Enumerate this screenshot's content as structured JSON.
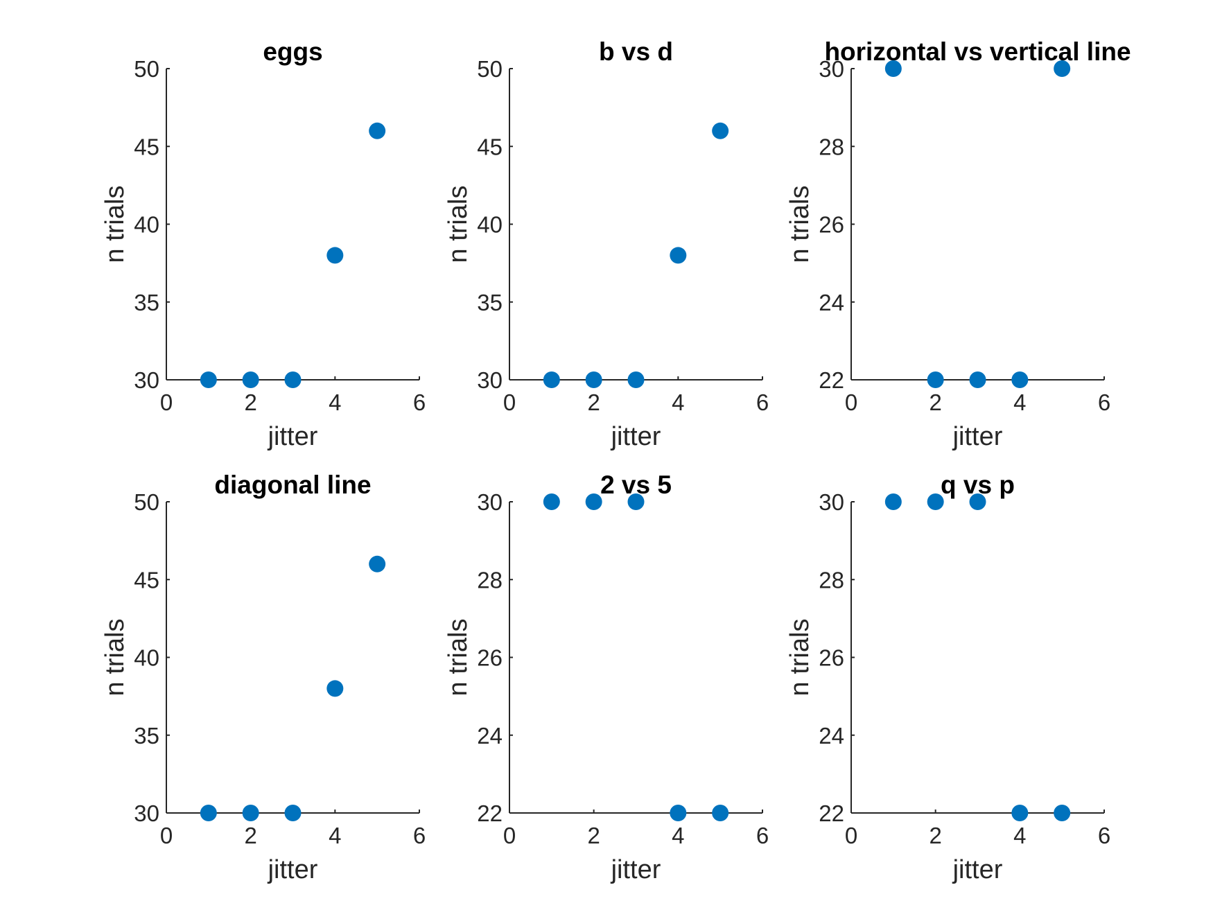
{
  "figure": {
    "marker_color": "#0072BD",
    "axis_color": "#262626"
  },
  "chart_data": [
    {
      "type": "scatter",
      "title": "eggs",
      "xlabel": "jitter",
      "ylabel": "n trials",
      "xlim": [
        0,
        6
      ],
      "ylim": [
        30,
        50
      ],
      "xticks": [
        "0",
        "2",
        "4",
        "6"
      ],
      "yticks": [
        "30",
        "35",
        "40",
        "45",
        "50"
      ],
      "x": [
        1,
        2,
        3,
        4,
        5
      ],
      "y": [
        30,
        30,
        30,
        38,
        46
      ],
      "grid": false
    },
    {
      "type": "scatter",
      "title": "b vs d",
      "xlabel": "jitter",
      "ylabel": "n trials",
      "xlim": [
        0,
        6
      ],
      "ylim": [
        30,
        50
      ],
      "xticks": [
        "0",
        "2",
        "4",
        "6"
      ],
      "yticks": [
        "30",
        "35",
        "40",
        "45",
        "50"
      ],
      "x": [
        1,
        2,
        3,
        4,
        5
      ],
      "y": [
        30,
        30,
        30,
        38,
        46
      ],
      "grid": false
    },
    {
      "type": "scatter",
      "title": "horizontal vs vertical line",
      "xlabel": "jitter",
      "ylabel": "n trials",
      "xlim": [
        0,
        6
      ],
      "ylim": [
        22,
        30
      ],
      "xticks": [
        "0",
        "2",
        "4",
        "6"
      ],
      "yticks": [
        "22",
        "24",
        "26",
        "28",
        "30"
      ],
      "x": [
        1,
        2,
        3,
        4,
        5
      ],
      "y": [
        30,
        22,
        22,
        22,
        30
      ],
      "grid": false
    },
    {
      "type": "scatter",
      "title": "diagonal line",
      "xlabel": "jitter",
      "ylabel": "n trials",
      "xlim": [
        0,
        6
      ],
      "ylim": [
        30,
        50
      ],
      "xticks": [
        "0",
        "2",
        "4",
        "6"
      ],
      "yticks": [
        "30",
        "35",
        "40",
        "45",
        "50"
      ],
      "x": [
        1,
        2,
        3,
        4,
        5
      ],
      "y": [
        30,
        30,
        30,
        38,
        46
      ],
      "grid": false
    },
    {
      "type": "scatter",
      "title": "2 vs 5",
      "xlabel": "jitter",
      "ylabel": "n trials",
      "xlim": [
        0,
        6
      ],
      "ylim": [
        22,
        30
      ],
      "xticks": [
        "0",
        "2",
        "4",
        "6"
      ],
      "yticks": [
        "22",
        "24",
        "26",
        "28",
        "30"
      ],
      "x": [
        1,
        2,
        3,
        4,
        5
      ],
      "y": [
        30,
        30,
        30,
        22,
        22
      ],
      "grid": false
    },
    {
      "type": "scatter",
      "title": "q vs p",
      "xlabel": "jitter",
      "ylabel": "n trials",
      "xlim": [
        0,
        6
      ],
      "ylim": [
        22,
        30
      ],
      "xticks": [
        "0",
        "2",
        "4",
        "6"
      ],
      "yticks": [
        "22",
        "24",
        "26",
        "28",
        "30"
      ],
      "x": [
        1,
        2,
        3,
        4,
        5
      ],
      "y": [
        30,
        30,
        30,
        22,
        22
      ],
      "grid": false
    }
  ]
}
